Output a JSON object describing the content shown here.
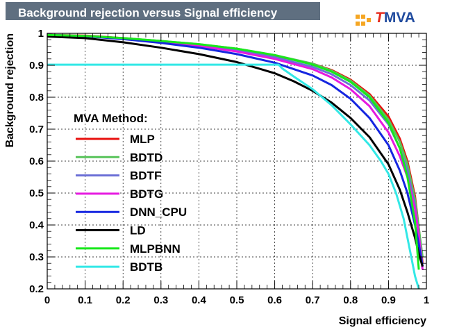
{
  "header": {
    "title": "Background rejection versus Signal efficiency"
  },
  "logo": {
    "first_letter": "T",
    "rest": "MVA",
    "colors": {
      "t": "#e52a1c",
      "mva": "#1f4a9e",
      "dots": "#f5a623"
    }
  },
  "chart_data": {
    "type": "line",
    "title": "Background rejection versus Signal efficiency",
    "xlabel": "Signal efficiency",
    "ylabel": "Background rejection",
    "xlim": [
      0,
      1
    ],
    "ylim": [
      0.2,
      1
    ],
    "xticks": [
      "0",
      "0.1",
      "0.2",
      "0.3",
      "0.4",
      "0.5",
      "0.6",
      "0.7",
      "0.8",
      "0.9",
      "1"
    ],
    "yticks": [
      "0.2",
      "0.3",
      "0.4",
      "0.5",
      "0.6",
      "0.7",
      "0.8",
      "0.9",
      "1"
    ],
    "grid": true,
    "legend_title": "MVA Method:",
    "legend_position": "left",
    "series": [
      {
        "name": "MLP",
        "color": "#e8100e",
        "x": [
          0,
          0.1,
          0.2,
          0.3,
          0.4,
          0.5,
          0.6,
          0.7,
          0.75,
          0.8,
          0.85,
          0.9,
          0.93,
          0.95,
          0.97,
          0.98,
          0.99
        ],
        "y": [
          0.995,
          0.993,
          0.985,
          0.975,
          0.965,
          0.95,
          0.93,
          0.905,
          0.885,
          0.855,
          0.81,
          0.74,
          0.67,
          0.6,
          0.49,
          0.39,
          0.28
        ]
      },
      {
        "name": "BDTD",
        "color": "#58c45a",
        "x": [
          0,
          0.1,
          0.2,
          0.3,
          0.4,
          0.5,
          0.6,
          0.7,
          0.75,
          0.8,
          0.85,
          0.9,
          0.93,
          0.95,
          0.97,
          0.98,
          0.99
        ],
        "y": [
          0.995,
          0.992,
          0.985,
          0.976,
          0.966,
          0.952,
          0.932,
          0.905,
          0.883,
          0.852,
          0.805,
          0.73,
          0.66,
          0.59,
          0.48,
          0.39,
          0.3
        ]
      },
      {
        "name": "BDTF",
        "color": "#6c70d6",
        "x": [
          0,
          0.1,
          0.2,
          0.3,
          0.4,
          0.5,
          0.6,
          0.7,
          0.75,
          0.8,
          0.85,
          0.9,
          0.93,
          0.95,
          0.97,
          0.98,
          0.99
        ],
        "y": [
          0.995,
          0.992,
          0.984,
          0.974,
          0.962,
          0.946,
          0.925,
          0.895,
          0.872,
          0.838,
          0.79,
          0.715,
          0.64,
          0.57,
          0.46,
          0.37,
          0.27
        ]
      },
      {
        "name": "BDTG",
        "color": "#e619e0",
        "x": [
          0,
          0.1,
          0.2,
          0.3,
          0.4,
          0.5,
          0.6,
          0.7,
          0.75,
          0.8,
          0.85,
          0.9,
          0.93,
          0.95,
          0.97,
          0.98,
          0.99
        ],
        "y": [
          0.995,
          0.992,
          0.984,
          0.973,
          0.96,
          0.943,
          0.92,
          0.888,
          0.862,
          0.825,
          0.772,
          0.69,
          0.615,
          0.55,
          0.45,
          0.37,
          0.26
        ]
      },
      {
        "name": "DNN_CPU",
        "color": "#1526e0",
        "x": [
          0,
          0.1,
          0.2,
          0.3,
          0.4,
          0.5,
          0.6,
          0.7,
          0.75,
          0.8,
          0.85,
          0.9,
          0.93,
          0.95,
          0.97,
          0.98,
          0.99
        ],
        "y": [
          0.995,
          0.991,
          0.982,
          0.97,
          0.955,
          0.935,
          0.908,
          0.868,
          0.838,
          0.795,
          0.735,
          0.65,
          0.57,
          0.5,
          0.4,
          0.34,
          0.27
        ]
      },
      {
        "name": "LD",
        "color": "#000000",
        "x": [
          0,
          0.1,
          0.2,
          0.3,
          0.4,
          0.5,
          0.6,
          0.65,
          0.7,
          0.75,
          0.8,
          0.85,
          0.9,
          0.93,
          0.95,
          0.97,
          0.98,
          0.99
        ],
        "y": [
          0.99,
          0.985,
          0.972,
          0.955,
          0.935,
          0.91,
          0.875,
          0.85,
          0.82,
          0.783,
          0.735,
          0.675,
          0.59,
          0.51,
          0.44,
          0.36,
          0.31,
          0.27
        ]
      },
      {
        "name": "MLPBNN",
        "color": "#18e81b",
        "x": [
          0,
          0.1,
          0.2,
          0.3,
          0.4,
          0.5,
          0.6,
          0.7,
          0.75,
          0.8,
          0.85,
          0.9,
          0.93,
          0.95,
          0.97,
          0.98
        ],
        "y": [
          0.995,
          0.992,
          0.985,
          0.976,
          0.966,
          0.952,
          0.932,
          0.902,
          0.88,
          0.848,
          0.8,
          0.72,
          0.64,
          0.55,
          0.41,
          0.26
        ]
      },
      {
        "name": "BDTB",
        "color": "#33e8e6",
        "x": [
          0,
          0.61,
          0.62,
          0.65,
          0.7,
          0.75,
          0.8,
          0.85,
          0.88,
          0.9,
          0.92,
          0.94,
          0.96,
          0.97,
          0.98
        ],
        "y": [
          0.902,
          0.902,
          0.89,
          0.865,
          0.825,
          0.775,
          0.715,
          0.65,
          0.6,
          0.56,
          0.5,
          0.42,
          0.3,
          0.24,
          0.2
        ]
      }
    ]
  }
}
